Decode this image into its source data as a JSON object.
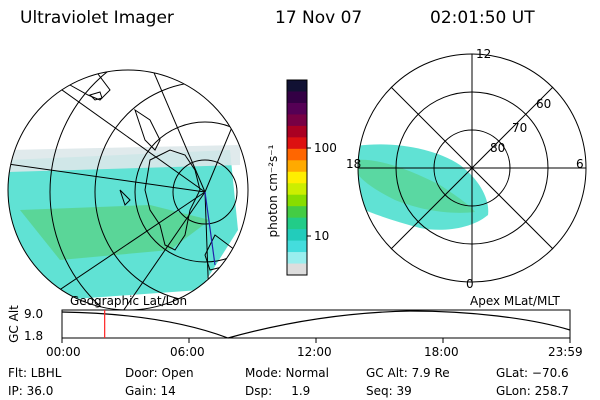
{
  "header": {
    "title": "Ultraviolet Imager",
    "date": "17 Nov 07",
    "time": "02:01:50 UT"
  },
  "colorbar": {
    "unit_label": "photon cm⁻²s⁻¹",
    "ticks": [
      "100",
      "10"
    ],
    "colors": [
      "#111133",
      "#330044",
      "#550055",
      "#770044",
      "#aa0022",
      "#dd1111",
      "#ff6600",
      "#ffaa00",
      "#ffee00",
      "#ccee00",
      "#88dd00",
      "#44cc44",
      "#22cc88",
      "#22ccbb",
      "#44dddd",
      "#99eeee",
      "#dddddd"
    ]
  },
  "left_panel": {
    "label": "Geographic Lat/Lon"
  },
  "right_panel": {
    "label": "Apex MLat/MLT",
    "mlt_labels": {
      "top": "12",
      "left": "18",
      "right": "6",
      "bottom": "0"
    },
    "lat_labels": [
      "60",
      "70",
      "80"
    ]
  },
  "timeline": {
    "ylabel": "GC Alt",
    "yticks": [
      "9.0",
      "1.8"
    ],
    "xticks": [
      "00:00",
      "06:00",
      "12:00",
      "18:00",
      "23:59"
    ],
    "current_time_fraction": 0.084,
    "marker_color": "#ff2222"
  },
  "status": {
    "flt": "Flt: LBHL",
    "ip": "IP: 36.0",
    "door": "Door: Open",
    "gain": "Gain: 14",
    "mode": "Mode: Normal",
    "dsp": "Dsp:     1.9",
    "gc_alt": "GC Alt: 7.9 Re",
    "seq": "Seq: 39",
    "glat": "GLat: −70.6",
    "glon": "GLon: 258.7"
  }
}
